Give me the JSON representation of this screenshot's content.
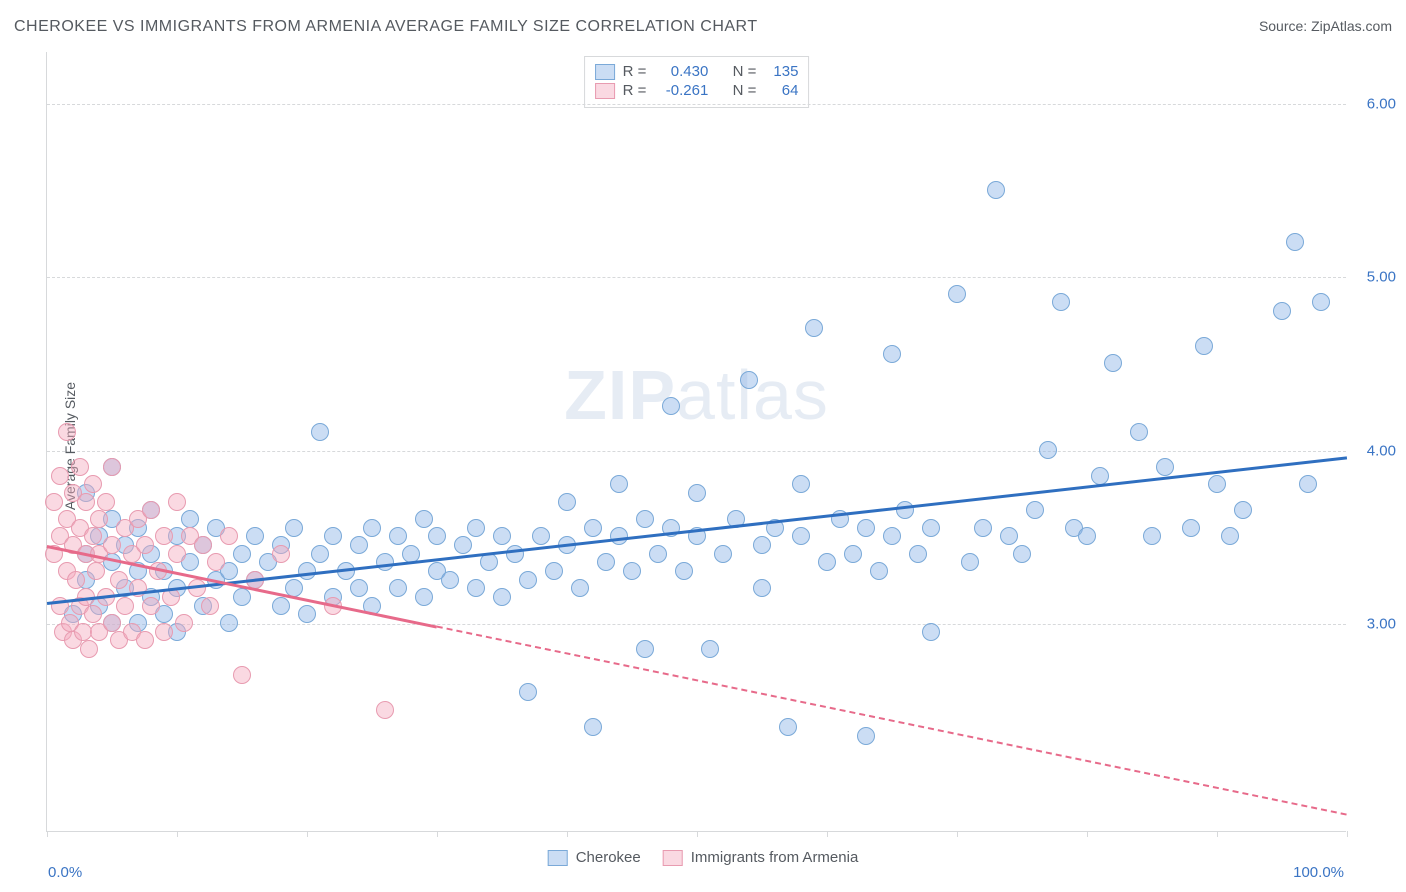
{
  "title": "CHEROKEE VS IMMIGRANTS FROM ARMENIA AVERAGE FAMILY SIZE CORRELATION CHART",
  "source_label": "Source: ZipAtlas.com",
  "y_axis_label": "Average Family Size",
  "watermark_bold": "ZIP",
  "watermark_rest": "atlas",
  "chart": {
    "type": "scatter",
    "xlim": [
      0,
      100
    ],
    "ylim": [
      1.8,
      6.3
    ],
    "x_tick_positions": [
      0,
      10,
      20,
      30,
      40,
      50,
      60,
      70,
      80,
      90,
      100
    ],
    "y_tick_positions": [
      3.0,
      4.0,
      5.0,
      6.0
    ],
    "y_tick_labels": [
      "3.00",
      "4.00",
      "5.00",
      "6.00"
    ],
    "x_min_label": "0.0%",
    "x_max_label": "100.0%",
    "y_tick_color": "#3a74c4",
    "x_label_color": "#3a74c4",
    "grid_color": "#d7d9db",
    "background_color": "#ffffff",
    "marker_radius": 9,
    "marker_stroke_width": 1
  },
  "series": [
    {
      "id": "cherokee",
      "label": "Cherokee",
      "R": "0.430",
      "N": "135",
      "color_fill": "rgba(140,180,230,0.45)",
      "color_stroke": "#7aa9d8",
      "trend_color": "#2f6fc0",
      "trend_start": [
        0,
        3.12
      ],
      "trend_end": [
        100,
        3.96
      ],
      "solid_until_x": 100,
      "points": [
        [
          2,
          3.05
        ],
        [
          3,
          3.4
        ],
        [
          3,
          3.25
        ],
        [
          4,
          3.1
        ],
        [
          4,
          3.5
        ],
        [
          5,
          3.0
        ],
        [
          5,
          3.35
        ],
        [
          5,
          3.6
        ],
        [
          6,
          3.2
        ],
        [
          6,
          3.45
        ],
        [
          7,
          3.0
        ],
        [
          7,
          3.3
        ],
        [
          7,
          3.55
        ],
        [
          8,
          3.15
        ],
        [
          8,
          3.4
        ],
        [
          8,
          3.65
        ],
        [
          9,
          3.05
        ],
        [
          9,
          3.3
        ],
        [
          10,
          3.2
        ],
        [
          10,
          3.5
        ],
        [
          10,
          2.95
        ],
        [
          11,
          3.35
        ],
        [
          11,
          3.6
        ],
        [
          12,
          3.1
        ],
        [
          12,
          3.45
        ],
        [
          13,
          3.25
        ],
        [
          13,
          3.55
        ],
        [
          14,
          3.0
        ],
        [
          14,
          3.3
        ],
        [
          15,
          3.4
        ],
        [
          15,
          3.15
        ],
        [
          16,
          3.5
        ],
        [
          16,
          3.25
        ],
        [
          17,
          3.35
        ],
        [
          18,
          3.1
        ],
        [
          18,
          3.45
        ],
        [
          19,
          3.2
        ],
        [
          19,
          3.55
        ],
        [
          20,
          3.3
        ],
        [
          20,
          3.05
        ],
        [
          21,
          3.4
        ],
        [
          21,
          4.1
        ],
        [
          22,
          3.15
        ],
        [
          22,
          3.5
        ],
        [
          23,
          3.3
        ],
        [
          24,
          3.45
        ],
        [
          24,
          3.2
        ],
        [
          25,
          3.55
        ],
        [
          25,
          3.1
        ],
        [
          26,
          3.35
        ],
        [
          27,
          3.2
        ],
        [
          27,
          3.5
        ],
        [
          28,
          3.4
        ],
        [
          29,
          3.15
        ],
        [
          29,
          3.6
        ],
        [
          30,
          3.3
        ],
        [
          30,
          3.5
        ],
        [
          31,
          3.25
        ],
        [
          32,
          3.45
        ],
        [
          33,
          3.2
        ],
        [
          33,
          3.55
        ],
        [
          34,
          3.35
        ],
        [
          35,
          3.5
        ],
        [
          35,
          3.15
        ],
        [
          36,
          3.4
        ],
        [
          37,
          3.25
        ],
        [
          37,
          2.6
        ],
        [
          38,
          3.5
        ],
        [
          39,
          3.3
        ],
        [
          40,
          3.45
        ],
        [
          40,
          3.7
        ],
        [
          41,
          3.2
        ],
        [
          42,
          3.55
        ],
        [
          42,
          2.4
        ],
        [
          43,
          3.35
        ],
        [
          44,
          3.5
        ],
        [
          44,
          3.8
        ],
        [
          45,
          3.3
        ],
        [
          46,
          3.6
        ],
        [
          46,
          2.85
        ],
        [
          47,
          3.4
        ],
        [
          48,
          3.55
        ],
        [
          48,
          4.25
        ],
        [
          49,
          3.3
        ],
        [
          50,
          3.5
        ],
        [
          50,
          3.75
        ],
        [
          51,
          2.85
        ],
        [
          52,
          3.4
        ],
        [
          53,
          3.6
        ],
        [
          54,
          4.4
        ],
        [
          55,
          3.45
        ],
        [
          55,
          3.2
        ],
        [
          56,
          3.55
        ],
        [
          57,
          2.4
        ],
        [
          58,
          3.5
        ],
        [
          58,
          3.8
        ],
        [
          59,
          4.7
        ],
        [
          60,
          3.35
        ],
        [
          61,
          3.6
        ],
        [
          62,
          3.4
        ],
        [
          63,
          3.55
        ],
        [
          63,
          2.35
        ],
        [
          64,
          3.3
        ],
        [
          65,
          3.5
        ],
        [
          65,
          4.55
        ],
        [
          66,
          3.65
        ],
        [
          67,
          3.4
        ],
        [
          68,
          3.55
        ],
        [
          68,
          2.95
        ],
        [
          70,
          4.9
        ],
        [
          71,
          3.35
        ],
        [
          72,
          3.55
        ],
        [
          73,
          5.5
        ],
        [
          74,
          3.5
        ],
        [
          75,
          3.4
        ],
        [
          76,
          3.65
        ],
        [
          77,
          4.0
        ],
        [
          78,
          4.85
        ],
        [
          79,
          3.55
        ],
        [
          80,
          3.5
        ],
        [
          81,
          3.85
        ],
        [
          82,
          4.5
        ],
        [
          84,
          4.1
        ],
        [
          85,
          3.5
        ],
        [
          86,
          3.9
        ],
        [
          88,
          3.55
        ],
        [
          89,
          4.6
        ],
        [
          90,
          3.8
        ],
        [
          91,
          3.5
        ],
        [
          92,
          3.65
        ],
        [
          95,
          4.8
        ],
        [
          96,
          5.2
        ],
        [
          97,
          3.8
        ],
        [
          98,
          4.85
        ],
        [
          3,
          3.75
        ],
        [
          5,
          3.9
        ]
      ]
    },
    {
      "id": "armenia",
      "label": "Immigrants from Armenia",
      "R": "-0.261",
      "N": "64",
      "color_fill": "rgba(245,170,190,0.45)",
      "color_stroke": "#e89bb0",
      "trend_color": "#e76a8a",
      "trend_start": [
        0,
        3.45
      ],
      "trend_end": [
        100,
        1.9
      ],
      "solid_until_x": 30,
      "points": [
        [
          0.5,
          3.4
        ],
        [
          0.5,
          3.7
        ],
        [
          1,
          3.1
        ],
        [
          1,
          3.5
        ],
        [
          1,
          3.85
        ],
        [
          1.2,
          2.95
        ],
        [
          1.5,
          3.3
        ],
        [
          1.5,
          3.6
        ],
        [
          1.5,
          4.1
        ],
        [
          1.8,
          3.0
        ],
        [
          2,
          3.45
        ],
        [
          2,
          3.75
        ],
        [
          2,
          2.9
        ],
        [
          2.2,
          3.25
        ],
        [
          2.5,
          3.55
        ],
        [
          2.5,
          3.9
        ],
        [
          2.5,
          3.1
        ],
        [
          2.8,
          2.95
        ],
        [
          3,
          3.4
        ],
        [
          3,
          3.7
        ],
        [
          3,
          3.15
        ],
        [
          3.2,
          2.85
        ],
        [
          3.5,
          3.5
        ],
        [
          3.5,
          3.8
        ],
        [
          3.5,
          3.05
        ],
        [
          3.8,
          3.3
        ],
        [
          4,
          3.6
        ],
        [
          4,
          2.95
        ],
        [
          4,
          3.4
        ],
        [
          4.5,
          3.15
        ],
        [
          4.5,
          3.7
        ],
        [
          5,
          3.0
        ],
        [
          5,
          3.45
        ],
        [
          5,
          3.9
        ],
        [
          5.5,
          3.25
        ],
        [
          5.5,
          2.9
        ],
        [
          6,
          3.55
        ],
        [
          6,
          3.1
        ],
        [
          6.5,
          3.4
        ],
        [
          6.5,
          2.95
        ],
        [
          7,
          3.6
        ],
        [
          7,
          3.2
        ],
        [
          7.5,
          3.45
        ],
        [
          7.5,
          2.9
        ],
        [
          8,
          3.1
        ],
        [
          8,
          3.65
        ],
        [
          8.5,
          3.3
        ],
        [
          9,
          3.5
        ],
        [
          9,
          2.95
        ],
        [
          9.5,
          3.15
        ],
        [
          10,
          3.4
        ],
        [
          10,
          3.7
        ],
        [
          10.5,
          3.0
        ],
        [
          11,
          3.5
        ],
        [
          11.5,
          3.2
        ],
        [
          12,
          3.45
        ],
        [
          12.5,
          3.1
        ],
        [
          13,
          3.35
        ],
        [
          14,
          3.5
        ],
        [
          15,
          2.7
        ],
        [
          16,
          3.25
        ],
        [
          18,
          3.4
        ],
        [
          22,
          3.1
        ],
        [
          26,
          2.5
        ]
      ]
    }
  ],
  "legend_top": {
    "stat_labels": {
      "R": "R =",
      "N": "N ="
    },
    "value_color": "#3a74c4",
    "border_color": "#d7d9db"
  }
}
